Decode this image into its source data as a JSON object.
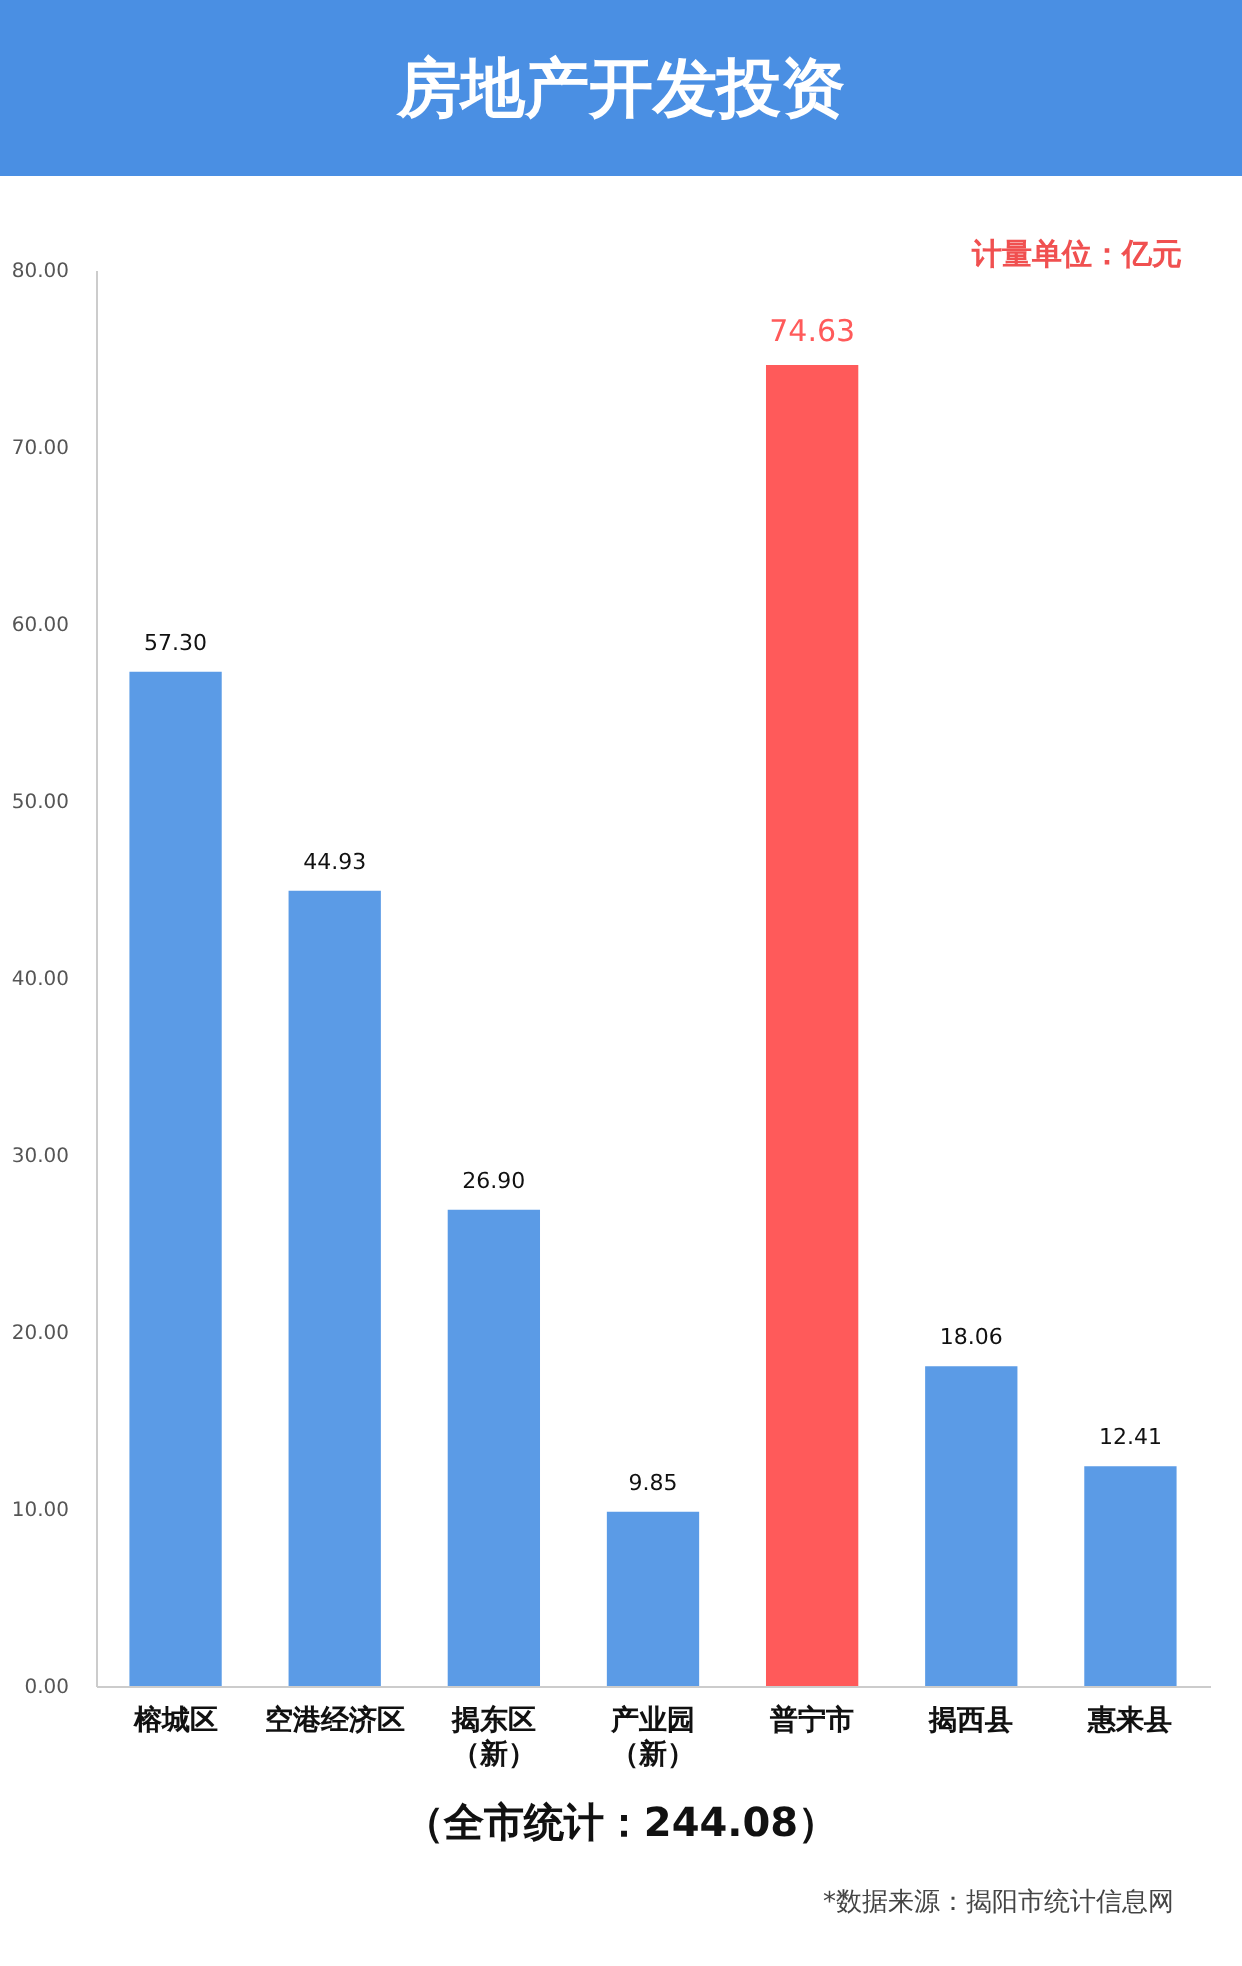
{
  "chart_data": {
    "type": "bar",
    "title": "房地产开发投资",
    "categories": [
      "榕城区",
      "空港经济区",
      "揭东区（新）",
      "产业园（新）",
      "普宁市",
      "揭西县",
      "惠来县"
    ],
    "values": [
      57.3,
      44.93,
      26.9,
      9.85,
      74.63,
      18.06,
      12.41
    ],
    "value_labels": [
      "57.30",
      "44.93",
      "26.90",
      "9.85",
      "74.63",
      "18.06",
      "12.41"
    ],
    "colors": [
      "#5b9be6",
      "#5b9be6",
      "#5b9be6",
      "#5b9be6",
      "#ff5a5a",
      "#5b9be6",
      "#5b9be6"
    ],
    "ylim": [
      0,
      80
    ],
    "yticks": [
      {
        "value": 0,
        "label": "0.00"
      },
      {
        "value": 10,
        "label": "10.00"
      },
      {
        "value": 20,
        "label": "20.00"
      },
      {
        "value": 30,
        "label": "30.00"
      },
      {
        "value": 40,
        "label": "40.00"
      },
      {
        "value": 50,
        "label": "50.00"
      },
      {
        "value": 60,
        "label": "60.00"
      },
      {
        "value": 70,
        "label": "70.00"
      },
      {
        "value": 80,
        "label": "80.00"
      }
    ],
    "grid": false,
    "annotations": [
      "计量单位：亿元",
      "（全市统计：244.08）",
      "*数据来源：揭阳市统计信息网"
    ]
  }
}
